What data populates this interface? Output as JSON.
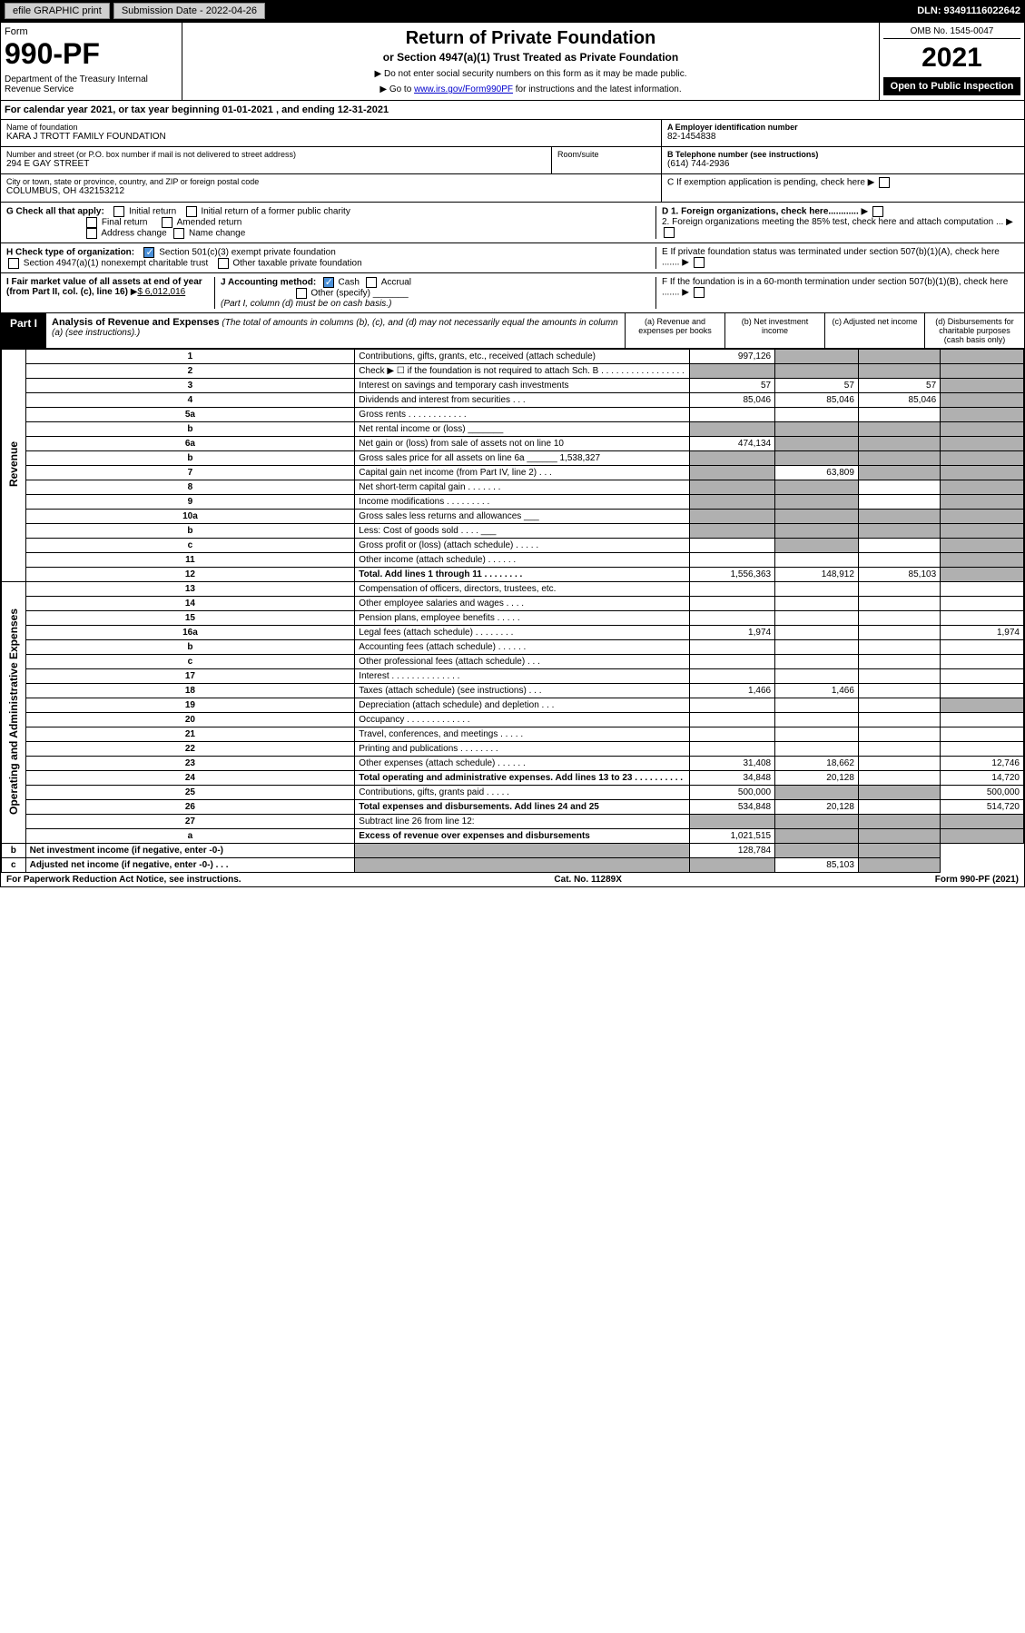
{
  "top": {
    "efile": "efile GRAPHIC print",
    "submission_label": "Submission Date - 2022-04-26",
    "dln": "DLN: 93491116022642"
  },
  "header": {
    "form_label": "Form",
    "form_number": "990-PF",
    "dept": "Department of the Treasury\nInternal Revenue Service",
    "title": "Return of Private Foundation",
    "subtitle": "or Section 4947(a)(1) Trust Treated as Private Foundation",
    "note1": "▶ Do not enter social security numbers on this form as it may be made public.",
    "note2_pre": "▶ Go to ",
    "note2_link": "www.irs.gov/Form990PF",
    "note2_post": " for instructions and the latest information.",
    "omb": "OMB No. 1545-0047",
    "year": "2021",
    "open": "Open to Public Inspection"
  },
  "cal_year": "For calendar year 2021, or tax year beginning 01-01-2021            , and ending 12-31-2021",
  "a": {
    "name_lbl": "Name of foundation",
    "name": "KARA J TROTT FAMILY FOUNDATION",
    "addr_lbl": "Number and street (or P.O. box number if mail is not delivered to street address)",
    "addr": "294 E GAY STREET",
    "room_lbl": "Room/suite",
    "city_lbl": "City or town, state or province, country, and ZIP or foreign postal code",
    "city": "COLUMBUS, OH  432153212"
  },
  "b": {
    "ein_lbl": "A Employer identification number",
    "ein": "82-1454838",
    "tel_lbl": "B Telephone number (see instructions)",
    "tel": "(614) 744-2936",
    "c_lbl": "C If exemption application is pending, check here",
    "d1": "D 1. Foreign organizations, check here............",
    "d2": "2. Foreign organizations meeting the 85% test, check here and attach computation ...",
    "e": "E If private foundation status was terminated under section 507(b)(1)(A), check here .......",
    "f": "F If the foundation is in a 60-month termination under section 507(b)(1)(B), check here ......."
  },
  "g": {
    "label": "G Check all that apply:",
    "initial": "Initial return",
    "initial_former": "Initial return of a former public charity",
    "final": "Final return",
    "amended": "Amended return",
    "addr_change": "Address change",
    "name_change": "Name change"
  },
  "h": {
    "label": "H Check type of organization:",
    "s501": "Section 501(c)(3) exempt private foundation",
    "s4947": "Section 4947(a)(1) nonexempt charitable trust",
    "other_tax": "Other taxable private foundation"
  },
  "i": {
    "label": "I Fair market value of all assets at end of year (from Part II, col. (c), line 16)",
    "val": "$  6,012,016"
  },
  "j": {
    "label": "J Accounting method:",
    "cash": "Cash",
    "accrual": "Accrual",
    "other": "Other (specify)",
    "note": "(Part I, column (d) must be on cash basis.)"
  },
  "part1": {
    "tag": "Part I",
    "title": "Analysis of Revenue and Expenses",
    "note": " (The total of amounts in columns (b), (c), and (d) may not necessarily equal the amounts in column (a) (see instructions).)",
    "col_a": "(a) Revenue and expenses per books",
    "col_b": "(b) Net investment income",
    "col_c": "(c) Adjusted net income",
    "col_d": "(d) Disbursements for charitable purposes (cash basis only)"
  },
  "sections": {
    "revenue": "Revenue",
    "expenses": "Operating and Administrative Expenses"
  },
  "rows": [
    {
      "n": "1",
      "d": "Contributions, gifts, grants, etc., received (attach schedule)",
      "a": "997,126",
      "b": null,
      "c": null,
      "dd": null,
      "b_g": true,
      "c_g": true,
      "d_g": true
    },
    {
      "n": "2",
      "d": "Check ▶ ☐ if the foundation is not required to attach Sch. B  .  .  .  .  .  .  .  .  .  .  .  .  .  .  .  .  .",
      "a": null,
      "b": null,
      "c": null,
      "dd": null,
      "a_g": true,
      "b_g": true,
      "c_g": true,
      "d_g": true
    },
    {
      "n": "3",
      "d": "Interest on savings and temporary cash investments",
      "a": "57",
      "b": "57",
      "c": "57",
      "dd": null,
      "d_g": true
    },
    {
      "n": "4",
      "d": "Dividends and interest from securities  .  .  .",
      "a": "85,046",
      "b": "85,046",
      "c": "85,046",
      "dd": null,
      "d_g": true
    },
    {
      "n": "5a",
      "d": "Gross rents  .  .  .  .  .  .  .  .  .  .  .  .",
      "a": "",
      "b": "",
      "c": "",
      "dd": null,
      "d_g": true
    },
    {
      "n": "b",
      "d": "Net rental income or (loss)  _______",
      "a": null,
      "b": null,
      "c": null,
      "dd": null,
      "a_g": true,
      "b_g": true,
      "c_g": true,
      "d_g": true
    },
    {
      "n": "6a",
      "d": "Net gain or (loss) from sale of assets not on line 10",
      "a": "474,134",
      "b": null,
      "c": null,
      "dd": null,
      "b_g": true,
      "c_g": true,
      "d_g": true
    },
    {
      "n": "b",
      "d": "Gross sales price for all assets on line 6a ______ 1,538,327",
      "a": null,
      "b": null,
      "c": null,
      "dd": null,
      "a_g": true,
      "b_g": true,
      "c_g": true,
      "d_g": true
    },
    {
      "n": "7",
      "d": "Capital gain net income (from Part IV, line 2)  .  .  .",
      "a": null,
      "b": "63,809",
      "c": null,
      "dd": null,
      "a_g": true,
      "c_g": true,
      "d_g": true
    },
    {
      "n": "8",
      "d": "Net short-term capital gain  .  .  .  .  .  .  .",
      "a": null,
      "b": null,
      "c": "",
      "dd": null,
      "a_g": true,
      "b_g": true,
      "d_g": true
    },
    {
      "n": "9",
      "d": "Income modifications  .  .  .  .  .  .  .  .  .",
      "a": null,
      "b": null,
      "c": "",
      "dd": null,
      "a_g": true,
      "b_g": true,
      "d_g": true
    },
    {
      "n": "10a",
      "d": "Gross sales less returns and allowances  ___",
      "a": null,
      "b": null,
      "c": null,
      "dd": null,
      "a_g": true,
      "b_g": true,
      "c_g": true,
      "d_g": true
    },
    {
      "n": "b",
      "d": "Less: Cost of goods sold  .  .  .  .  ___",
      "a": null,
      "b": null,
      "c": null,
      "dd": null,
      "a_g": true,
      "b_g": true,
      "c_g": true,
      "d_g": true
    },
    {
      "n": "c",
      "d": "Gross profit or (loss) (attach schedule)  .  .  .  .  .",
      "a": "",
      "b": null,
      "c": "",
      "dd": null,
      "b_g": true,
      "d_g": true
    },
    {
      "n": "11",
      "d": "Other income (attach schedule)  .  .  .  .  .  .",
      "a": "",
      "b": "",
      "c": "",
      "dd": null,
      "d_g": true
    },
    {
      "n": "12",
      "d": "Total. Add lines 1 through 11  .  .  .  .  .  .  .  .",
      "a": "1,556,363",
      "b": "148,912",
      "c": "85,103",
      "dd": null,
      "bold": true,
      "d_g": true
    },
    {
      "n": "13",
      "d": "Compensation of officers, directors, trustees, etc.",
      "a": "",
      "b": "",
      "c": "",
      "dd": ""
    },
    {
      "n": "14",
      "d": "Other employee salaries and wages  .  .  .  .",
      "a": "",
      "b": "",
      "c": "",
      "dd": ""
    },
    {
      "n": "15",
      "d": "Pension plans, employee benefits  .  .  .  .  .",
      "a": "",
      "b": "",
      "c": "",
      "dd": ""
    },
    {
      "n": "16a",
      "d": "Legal fees (attach schedule)  .  .  .  .  .  .  .  .",
      "a": "1,974",
      "b": "",
      "c": "",
      "dd": "1,974"
    },
    {
      "n": "b",
      "d": "Accounting fees (attach schedule)  .  .  .  .  .  .",
      "a": "",
      "b": "",
      "c": "",
      "dd": ""
    },
    {
      "n": "c",
      "d": "Other professional fees (attach schedule)  .  .  .",
      "a": "",
      "b": "",
      "c": "",
      "dd": ""
    },
    {
      "n": "17",
      "d": "Interest  .  .  .  .  .  .  .  .  .  .  .  .  .  .",
      "a": "",
      "b": "",
      "c": "",
      "dd": ""
    },
    {
      "n": "18",
      "d": "Taxes (attach schedule) (see instructions)  .  .  .",
      "a": "1,466",
      "b": "1,466",
      "c": "",
      "dd": ""
    },
    {
      "n": "19",
      "d": "Depreciation (attach schedule) and depletion  .  .  .",
      "a": "",
      "b": "",
      "c": "",
      "dd": null,
      "d_g": true
    },
    {
      "n": "20",
      "d": "Occupancy  .  .  .  .  .  .  .  .  .  .  .  .  .",
      "a": "",
      "b": "",
      "c": "",
      "dd": ""
    },
    {
      "n": "21",
      "d": "Travel, conferences, and meetings  .  .  .  .  .",
      "a": "",
      "b": "",
      "c": "",
      "dd": ""
    },
    {
      "n": "22",
      "d": "Printing and publications  .  .  .  .  .  .  .  .",
      "a": "",
      "b": "",
      "c": "",
      "dd": ""
    },
    {
      "n": "23",
      "d": "Other expenses (attach schedule)  .  .  .  .  .  .",
      "a": "31,408",
      "b": "18,662",
      "c": "",
      "dd": "12,746"
    },
    {
      "n": "24",
      "d": "Total operating and administrative expenses. Add lines 13 to 23  .  .  .  .  .  .  .  .  .  .",
      "a": "34,848",
      "b": "20,128",
      "c": "",
      "dd": "14,720",
      "bold": true
    },
    {
      "n": "25",
      "d": "Contributions, gifts, grants paid  .  .  .  .  .",
      "a": "500,000",
      "b": null,
      "c": null,
      "dd": "500,000",
      "b_g": true,
      "c_g": true
    },
    {
      "n": "26",
      "d": "Total expenses and disbursements. Add lines 24 and 25",
      "a": "534,848",
      "b": "20,128",
      "c": "",
      "dd": "514,720",
      "bold": true
    },
    {
      "n": "27",
      "d": "Subtract line 26 from line 12:",
      "a": null,
      "b": null,
      "c": null,
      "dd": null,
      "a_g": true,
      "b_g": true,
      "c_g": true,
      "d_g": true
    },
    {
      "n": "a",
      "d": "Excess of revenue over expenses and disbursements",
      "a": "1,021,515",
      "b": null,
      "c": null,
      "dd": null,
      "bold": true,
      "b_g": true,
      "c_g": true,
      "d_g": true
    },
    {
      "n": "b",
      "d": "Net investment income (if negative, enter -0-)",
      "a": null,
      "b": "128,784",
      "c": null,
      "dd": null,
      "bold": true,
      "a_g": true,
      "c_g": true,
      "d_g": true
    },
    {
      "n": "c",
      "d": "Adjusted net income (if negative, enter -0-)  .  .  .",
      "a": null,
      "b": null,
      "c": "85,103",
      "dd": null,
      "bold": true,
      "a_g": true,
      "b_g": true,
      "d_g": true
    }
  ],
  "footer": {
    "left": "For Paperwork Reduction Act Notice, see instructions.",
    "mid": "Cat. No. 11289X",
    "right": "Form 990-PF (2021)"
  }
}
